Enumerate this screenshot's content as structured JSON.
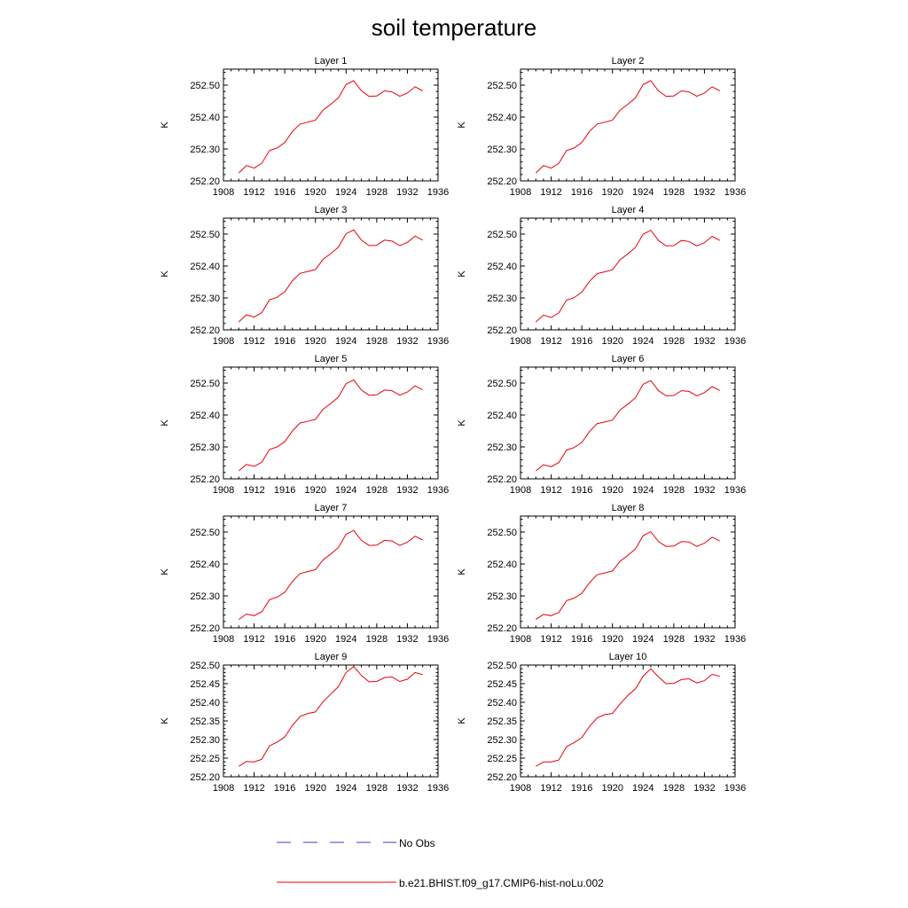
{
  "title": "soil temperature",
  "legend": {
    "items": [
      {
        "label": "No Obs",
        "color": "#3b3bd6",
        "style": "dashed"
      },
      {
        "label": "b.e21.BHIST.f09_g17.CMIP6-hist-noLu.002",
        "color": "#e8000b",
        "style": "solid"
      }
    ]
  },
  "chart_data": [
    {
      "type": "line",
      "title": "Layer 1",
      "ylabel": "K",
      "xlim": [
        1908,
        1936
      ],
      "ylim": [
        252.2,
        252.55
      ],
      "xticks": [
        "1908",
        "1912",
        "1916",
        "1920",
        "1924",
        "1928",
        "1932",
        "1936"
      ],
      "yticks": [
        "252.20",
        "252.30",
        "252.40",
        "252.50"
      ],
      "series": [
        {
          "name": "b.e21.BHIST.f09_g17.CMIP6-hist-noLu.002",
          "color": "#e8000b",
          "x": [
            1910,
            1911,
            1912,
            1913,
            1914,
            1915,
            1916,
            1917,
            1918,
            1919,
            1920,
            1921,
            1922,
            1923,
            1924,
            1925,
            1926,
            1927,
            1928,
            1929,
            1930,
            1931,
            1932,
            1933,
            1934
          ],
          "y": [
            252.225,
            252.248,
            252.24,
            252.255,
            252.295,
            252.303,
            252.32,
            252.355,
            252.378,
            252.384,
            252.39,
            252.422,
            252.44,
            252.46,
            252.502,
            252.514,
            252.482,
            252.465,
            252.466,
            252.482,
            252.479,
            252.465,
            252.475,
            252.495,
            252.482
          ]
        }
      ]
    },
    {
      "type": "line",
      "title": "Layer 2",
      "ylabel": "K",
      "xlim": [
        1908,
        1936
      ],
      "ylim": [
        252.2,
        252.55
      ],
      "xticks": [
        "1908",
        "1912",
        "1916",
        "1920",
        "1924",
        "1928",
        "1932",
        "1936"
      ],
      "yticks": [
        "252.20",
        "252.30",
        "252.40",
        "252.50"
      ],
      "series": [
        {
          "name": "b.e21.BHIST.f09_g17.CMIP6-hist-noLu.002",
          "color": "#e8000b",
          "x": [
            1910,
            1911,
            1912,
            1913,
            1914,
            1915,
            1916,
            1917,
            1918,
            1919,
            1920,
            1921,
            1922,
            1923,
            1924,
            1925,
            1926,
            1927,
            1928,
            1929,
            1930,
            1931,
            1932,
            1933,
            1934
          ],
          "y": [
            252.225,
            252.248,
            252.24,
            252.255,
            252.295,
            252.303,
            252.32,
            252.355,
            252.378,
            252.384,
            252.39,
            252.422,
            252.44,
            252.46,
            252.502,
            252.514,
            252.482,
            252.465,
            252.466,
            252.482,
            252.479,
            252.465,
            252.475,
            252.495,
            252.482
          ]
        }
      ]
    },
    {
      "type": "line",
      "title": "Layer 3",
      "ylabel": "K",
      "xlim": [
        1908,
        1936
      ],
      "ylim": [
        252.2,
        252.55
      ],
      "xticks": [
        "1908",
        "1912",
        "1916",
        "1920",
        "1924",
        "1928",
        "1932",
        "1936"
      ],
      "yticks": [
        "252.20",
        "252.30",
        "252.40",
        "252.50"
      ],
      "series": [
        {
          "name": "b.e21.BHIST.f09_g17.CMIP6-hist-noLu.002",
          "color": "#e8000b",
          "x": [
            1910,
            1911,
            1912,
            1913,
            1914,
            1915,
            1916,
            1917,
            1918,
            1919,
            1920,
            1921,
            1922,
            1923,
            1924,
            1925,
            1926,
            1927,
            1928,
            1929,
            1930,
            1931,
            1932,
            1933,
            1934
          ],
          "y": [
            252.225,
            252.247,
            252.24,
            252.254,
            252.294,
            252.302,
            252.319,
            252.354,
            252.377,
            252.383,
            252.389,
            252.421,
            252.439,
            252.459,
            252.501,
            252.513,
            252.481,
            252.464,
            252.465,
            252.481,
            252.478,
            252.464,
            252.474,
            252.494,
            252.481
          ]
        }
      ]
    },
    {
      "type": "line",
      "title": "Layer 4",
      "ylabel": "K",
      "xlim": [
        1908,
        1936
      ],
      "ylim": [
        252.2,
        252.55
      ],
      "xticks": [
        "1908",
        "1912",
        "1916",
        "1920",
        "1924",
        "1928",
        "1932",
        "1936"
      ],
      "yticks": [
        "252.20",
        "252.30",
        "252.40",
        "252.50"
      ],
      "series": [
        {
          "name": "b.e21.BHIST.f09_g17.CMIP6-hist-noLu.002",
          "color": "#e8000b",
          "x": [
            1910,
            1911,
            1912,
            1913,
            1914,
            1915,
            1916,
            1917,
            1918,
            1919,
            1920,
            1921,
            1922,
            1923,
            1924,
            1925,
            1926,
            1927,
            1928,
            1929,
            1930,
            1931,
            1932,
            1933,
            1934
          ],
          "y": [
            252.225,
            252.246,
            252.239,
            252.253,
            252.293,
            252.301,
            252.318,
            252.352,
            252.376,
            252.382,
            252.388,
            252.42,
            252.438,
            252.458,
            252.5,
            252.512,
            252.48,
            252.463,
            252.464,
            252.48,
            252.477,
            252.463,
            252.473,
            252.493,
            252.48
          ]
        }
      ]
    },
    {
      "type": "line",
      "title": "Layer 5",
      "ylabel": "K",
      "xlim": [
        1908,
        1936
      ],
      "ylim": [
        252.2,
        252.55
      ],
      "xticks": [
        "1908",
        "1912",
        "1916",
        "1920",
        "1924",
        "1928",
        "1932",
        "1936"
      ],
      "yticks": [
        "252.20",
        "252.30",
        "252.40",
        "252.50"
      ],
      "series": [
        {
          "name": "b.e21.BHIST.f09_g17.CMIP6-hist-noLu.002",
          "color": "#e8000b",
          "x": [
            1910,
            1911,
            1912,
            1913,
            1914,
            1915,
            1916,
            1917,
            1918,
            1919,
            1920,
            1921,
            1922,
            1923,
            1924,
            1925,
            1926,
            1927,
            1928,
            1929,
            1930,
            1931,
            1932,
            1933,
            1934
          ],
          "y": [
            252.225,
            252.245,
            252.239,
            252.252,
            252.292,
            252.3,
            252.316,
            252.35,
            252.375,
            252.38,
            252.386,
            252.418,
            252.436,
            252.456,
            252.498,
            252.51,
            252.478,
            252.462,
            252.463,
            252.478,
            252.476,
            252.462,
            252.472,
            252.491,
            252.479
          ]
        }
      ]
    },
    {
      "type": "line",
      "title": "Layer 6",
      "ylabel": "K",
      "xlim": [
        1908,
        1936
      ],
      "ylim": [
        252.2,
        252.55
      ],
      "xticks": [
        "1908",
        "1912",
        "1916",
        "1920",
        "1924",
        "1928",
        "1932",
        "1936"
      ],
      "yticks": [
        "252.20",
        "252.30",
        "252.40",
        "252.50"
      ],
      "series": [
        {
          "name": "b.e21.BHIST.f09_g17.CMIP6-hist-noLu.002",
          "color": "#e8000b",
          "x": [
            1910,
            1911,
            1912,
            1913,
            1914,
            1915,
            1916,
            1917,
            1918,
            1919,
            1920,
            1921,
            1922,
            1923,
            1924,
            1925,
            1926,
            1927,
            1928,
            1929,
            1930,
            1931,
            1932,
            1933,
            1934
          ],
          "y": [
            252.225,
            252.244,
            252.238,
            252.251,
            252.29,
            252.298,
            252.314,
            252.348,
            252.373,
            252.378,
            252.384,
            252.416,
            252.434,
            252.454,
            252.496,
            252.508,
            252.476,
            252.46,
            252.461,
            252.476,
            252.474,
            252.46,
            252.47,
            252.489,
            252.477
          ]
        }
      ]
    },
    {
      "type": "line",
      "title": "Layer 7",
      "ylabel": "K",
      "xlim": [
        1908,
        1936
      ],
      "ylim": [
        252.2,
        252.55
      ],
      "xticks": [
        "1908",
        "1912",
        "1916",
        "1920",
        "1924",
        "1928",
        "1932",
        "1936"
      ],
      "yticks": [
        "252.20",
        "252.30",
        "252.40",
        "252.50"
      ],
      "series": [
        {
          "name": "b.e21.BHIST.f09_g17.CMIP6-hist-noLu.002",
          "color": "#e8000b",
          "x": [
            1910,
            1911,
            1912,
            1913,
            1914,
            1915,
            1916,
            1917,
            1918,
            1919,
            1920,
            1921,
            1922,
            1923,
            1924,
            1925,
            1926,
            1927,
            1928,
            1929,
            1930,
            1931,
            1932,
            1933,
            1934
          ],
          "y": [
            252.226,
            252.243,
            252.238,
            252.25,
            252.288,
            252.296,
            252.311,
            252.345,
            252.37,
            252.376,
            252.382,
            252.413,
            252.431,
            252.451,
            252.493,
            252.505,
            252.474,
            252.458,
            252.459,
            252.474,
            252.472,
            252.458,
            252.468,
            252.487,
            252.475
          ]
        }
      ]
    },
    {
      "type": "line",
      "title": "Layer 8",
      "ylabel": "K",
      "xlim": [
        1908,
        1936
      ],
      "ylim": [
        252.2,
        252.55
      ],
      "xticks": [
        "1908",
        "1912",
        "1916",
        "1920",
        "1924",
        "1928",
        "1932",
        "1936"
      ],
      "yticks": [
        "252.20",
        "252.30",
        "252.40",
        "252.50"
      ],
      "series": [
        {
          "name": "b.e21.BHIST.f09_g17.CMIP6-hist-noLu.002",
          "color": "#e8000b",
          "x": [
            1910,
            1911,
            1912,
            1913,
            1914,
            1915,
            1916,
            1917,
            1918,
            1919,
            1920,
            1921,
            1922,
            1923,
            1924,
            1925,
            1926,
            1927,
            1928,
            1929,
            1930,
            1931,
            1932,
            1933,
            1934
          ],
          "y": [
            252.226,
            252.242,
            252.238,
            252.248,
            252.285,
            252.293,
            252.308,
            252.341,
            252.366,
            252.372,
            252.378,
            252.409,
            252.427,
            252.447,
            252.489,
            252.501,
            252.47,
            252.455,
            252.456,
            252.47,
            252.469,
            252.455,
            252.465,
            252.484,
            252.472
          ]
        }
      ]
    },
    {
      "type": "line",
      "title": "Layer 9",
      "ylabel": "K",
      "xlim": [
        1908,
        1936
      ],
      "ylim": [
        252.2,
        252.5
      ],
      "xticks": [
        "1908",
        "1912",
        "1916",
        "1920",
        "1924",
        "1928",
        "1932",
        "1936"
      ],
      "yticks": [
        "252.20",
        "252.25",
        "252.30",
        "252.35",
        "252.40",
        "252.45",
        "252.50"
      ],
      "series": [
        {
          "name": "b.e21.BHIST.f09_g17.CMIP6-hist-noLu.002",
          "color": "#e8000b",
          "x": [
            1910,
            1911,
            1912,
            1913,
            1914,
            1915,
            1916,
            1917,
            1918,
            1919,
            1920,
            1921,
            1922,
            1923,
            1924,
            1925,
            1926,
            1927,
            1928,
            1929,
            1930,
            1931,
            1932,
            1933,
            1934
          ],
          "y": [
            252.228,
            252.241,
            252.24,
            252.247,
            252.283,
            252.293,
            252.307,
            252.338,
            252.362,
            252.37,
            252.374,
            252.402,
            252.422,
            252.442,
            252.48,
            252.496,
            252.472,
            252.455,
            252.456,
            252.466,
            252.468,
            252.456,
            252.462,
            252.48,
            252.474
          ]
        }
      ]
    },
    {
      "type": "line",
      "title": "Layer 10",
      "ylabel": "K",
      "xlim": [
        1908,
        1936
      ],
      "ylim": [
        252.2,
        252.5
      ],
      "xticks": [
        "1908",
        "1912",
        "1916",
        "1920",
        "1924",
        "1928",
        "1932",
        "1936"
      ],
      "yticks": [
        "252.20",
        "252.25",
        "252.30",
        "252.35",
        "252.40",
        "252.45",
        "252.50"
      ],
      "series": [
        {
          "name": "b.e21.BHIST.f09_g17.CMIP6-hist-noLu.002",
          "color": "#e8000b",
          "x": [
            1910,
            1911,
            1912,
            1913,
            1914,
            1915,
            1916,
            1917,
            1918,
            1919,
            1920,
            1921,
            1922,
            1923,
            1924,
            1925,
            1926,
            1927,
            1928,
            1929,
            1930,
            1931,
            1932,
            1933,
            1934
          ],
          "y": [
            252.228,
            252.24,
            252.24,
            252.245,
            252.281,
            252.292,
            252.305,
            252.335,
            252.358,
            252.367,
            252.37,
            252.396,
            252.418,
            252.436,
            252.47,
            252.49,
            252.468,
            252.45,
            252.451,
            252.461,
            252.463,
            252.452,
            252.458,
            252.475,
            252.47
          ]
        }
      ]
    }
  ]
}
